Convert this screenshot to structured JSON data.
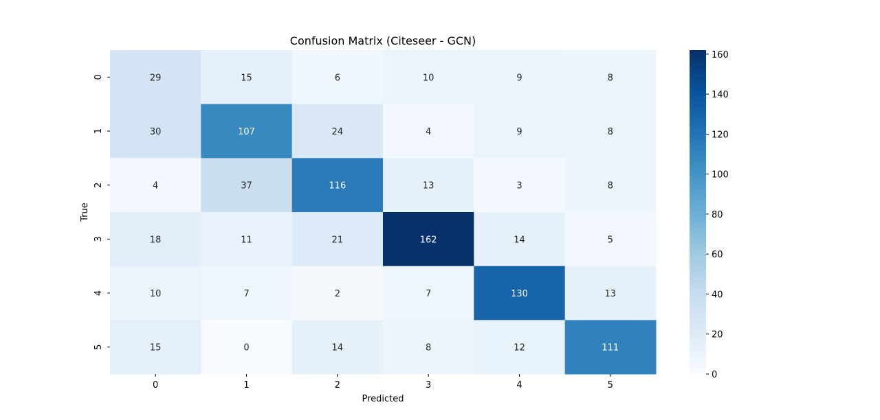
{
  "chart_data": {
    "type": "heatmap",
    "title": "Confusion Matrix (Citeseer - GCN)",
    "xlabel": "Predicted",
    "ylabel": "True",
    "x_categories": [
      "0",
      "1",
      "2",
      "3",
      "4",
      "5"
    ],
    "y_categories": [
      "0",
      "1",
      "2",
      "3",
      "4",
      "5"
    ],
    "values": [
      [
        29,
        15,
        6,
        10,
        9,
        8
      ],
      [
        30,
        107,
        24,
        4,
        9,
        8
      ],
      [
        4,
        37,
        116,
        13,
        3,
        8
      ],
      [
        18,
        11,
        21,
        162,
        14,
        5
      ],
      [
        10,
        7,
        2,
        7,
        130,
        13
      ],
      [
        15,
        0,
        14,
        8,
        12,
        111
      ]
    ],
    "colormap": "Blues",
    "colors": {
      "low": "#f7fbff",
      "high": "#08306b"
    },
    "colorbar": {
      "min": 0,
      "max": 162,
      "ticks": [
        0,
        20,
        40,
        60,
        80,
        100,
        120,
        140,
        160
      ]
    }
  }
}
